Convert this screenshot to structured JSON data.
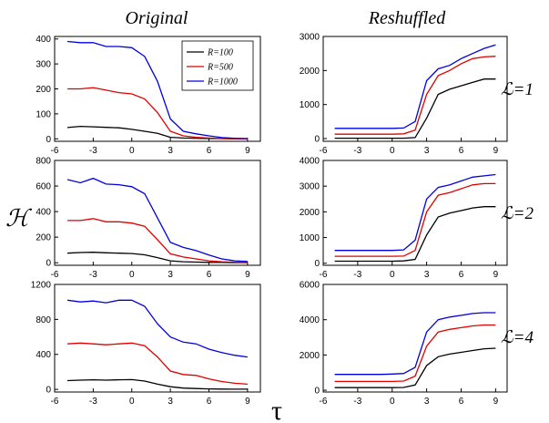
{
  "figure": {
    "col_titles": [
      "Original",
      "Reshuffled"
    ],
    "row_labels": [
      "ℒ=1",
      "ℒ=2",
      "ℒ=4"
    ],
    "ylabel": "ℋ",
    "xlabel": "τ",
    "legend": [
      "R=100",
      "R=500",
      "R=1000"
    ],
    "colors": {
      "R=100": "#000000",
      "R=500": "#e00000",
      "R=1000": "#0000e0"
    }
  },
  "chart_data": [
    {
      "type": "line",
      "panel": "Original, ℒ=1",
      "xlim": [
        -6,
        10
      ],
      "ylim": [
        -10,
        410
      ],
      "xticks": [
        -6,
        -3,
        0,
        3,
        6,
        9
      ],
      "yticks": [
        0,
        100,
        200,
        300,
        400
      ],
      "legend_position": "top-right",
      "x": [
        -5,
        -4,
        -3,
        -2,
        -1,
        0,
        1,
        2,
        3,
        4,
        5,
        6,
        7,
        8,
        9
      ],
      "series": [
        {
          "name": "R=100",
          "values": [
            45,
            50,
            48,
            46,
            44,
            38,
            30,
            22,
            6,
            3,
            2,
            1,
            1,
            0,
            0
          ]
        },
        {
          "name": "R=500",
          "values": [
            200,
            200,
            205,
            195,
            185,
            180,
            160,
            105,
            30,
            12,
            6,
            3,
            1,
            0,
            0
          ]
        },
        {
          "name": "R=1000",
          "values": [
            390,
            385,
            385,
            370,
            370,
            365,
            330,
            230,
            80,
            30,
            20,
            12,
            5,
            2,
            1
          ]
        }
      ]
    },
    {
      "type": "line",
      "panel": "Reshuffled, ℒ=1",
      "xlim": [
        -6,
        10
      ],
      "ylim": [
        -80,
        3000
      ],
      "xticks": [
        -6,
        -3,
        0,
        3,
        6,
        9
      ],
      "yticks": [
        0,
        1000,
        2000,
        3000
      ],
      "x": [
        -5,
        -4,
        -3,
        -2,
        -1,
        0,
        1,
        2,
        3,
        4,
        5,
        6,
        7,
        8,
        9
      ],
      "series": [
        {
          "name": "R=100",
          "values": [
            10,
            10,
            10,
            10,
            10,
            10,
            10,
            30,
            600,
            1300,
            1450,
            1550,
            1650,
            1750,
            1750
          ]
        },
        {
          "name": "R=500",
          "values": [
            130,
            130,
            130,
            130,
            130,
            130,
            140,
            250,
            1300,
            1850,
            2000,
            2200,
            2350,
            2400,
            2420
          ]
        },
        {
          "name": "R=1000",
          "values": [
            300,
            300,
            300,
            300,
            300,
            300,
            310,
            500,
            1700,
            2050,
            2150,
            2350,
            2500,
            2650,
            2750
          ]
        }
      ]
    },
    {
      "type": "line",
      "panel": "Original, ℒ=2",
      "xlim": [
        -6,
        10
      ],
      "ylim": [
        -20,
        800
      ],
      "xticks": [
        -6,
        -3,
        0,
        3,
        6,
        9
      ],
      "yticks": [
        0,
        200,
        400,
        600,
        800
      ],
      "x": [
        -5,
        -4,
        -3,
        -2,
        -1,
        0,
        1,
        2,
        3,
        4,
        5,
        6,
        7,
        8,
        9
      ],
      "series": [
        {
          "name": "R=100",
          "values": [
            75,
            80,
            82,
            78,
            75,
            72,
            62,
            40,
            15,
            8,
            5,
            3,
            2,
            1,
            1
          ]
        },
        {
          "name": "R=500",
          "values": [
            330,
            330,
            345,
            320,
            320,
            310,
            285,
            180,
            70,
            45,
            30,
            15,
            8,
            4,
            2
          ]
        },
        {
          "name": "R=1000",
          "values": [
            650,
            625,
            660,
            615,
            610,
            595,
            540,
            350,
            160,
            120,
            95,
            60,
            30,
            15,
            10
          ]
        }
      ]
    },
    {
      "type": "line",
      "panel": "Reshuffled, ℒ=2",
      "xlim": [
        -6,
        10
      ],
      "ylim": [
        -80,
        4000
      ],
      "xticks": [
        -6,
        -3,
        0,
        3,
        6,
        9
      ],
      "yticks": [
        0,
        1000,
        2000,
        3000,
        4000
      ],
      "x": [
        -5,
        -4,
        -3,
        -2,
        -1,
        0,
        1,
        2,
        3,
        4,
        5,
        6,
        7,
        8,
        9
      ],
      "series": [
        {
          "name": "R=100",
          "values": [
            80,
            80,
            80,
            80,
            80,
            80,
            90,
            150,
            1100,
            1800,
            1950,
            2050,
            2150,
            2200,
            2200
          ]
        },
        {
          "name": "R=500",
          "values": [
            270,
            270,
            270,
            270,
            270,
            270,
            280,
            500,
            2000,
            2650,
            2750,
            2900,
            3050,
            3100,
            3100
          ]
        },
        {
          "name": "R=1000",
          "values": [
            500,
            500,
            500,
            500,
            500,
            500,
            520,
            900,
            2500,
            2950,
            3050,
            3200,
            3350,
            3400,
            3450
          ]
        }
      ]
    },
    {
      "type": "line",
      "panel": "Original, ℒ=4",
      "xlim": [
        -6,
        10
      ],
      "ylim": [
        -30,
        1200
      ],
      "xticks": [
        -6,
        -3,
        0,
        3,
        6,
        9
      ],
      "yticks": [
        0,
        400,
        800,
        1200
      ],
      "x": [
        -5,
        -4,
        -3,
        -2,
        -1,
        0,
        1,
        2,
        3,
        4,
        5,
        6,
        7,
        8,
        9
      ],
      "series": [
        {
          "name": "R=100",
          "values": [
            100,
            105,
            110,
            105,
            110,
            112,
            95,
            60,
            30,
            15,
            10,
            5,
            3,
            2,
            2
          ]
        },
        {
          "name": "R=500",
          "values": [
            520,
            530,
            520,
            510,
            520,
            530,
            500,
            370,
            210,
            170,
            160,
            120,
            90,
            70,
            60
          ]
        },
        {
          "name": "R=1000",
          "values": [
            1020,
            1000,
            1010,
            990,
            1020,
            1020,
            950,
            750,
            600,
            540,
            520,
            460,
            420,
            390,
            370
          ]
        }
      ]
    },
    {
      "type": "line",
      "panel": "Reshuffled, ℒ=4",
      "xlim": [
        -6,
        10
      ],
      "ylim": [
        -100,
        6000
      ],
      "xticks": [
        -6,
        -3,
        0,
        3,
        6,
        9
      ],
      "yticks": [
        0,
        2000,
        4000,
        6000
      ],
      "x": [
        -5,
        -4,
        -3,
        -2,
        -1,
        0,
        1,
        2,
        3,
        4,
        5,
        6,
        7,
        8,
        9
      ],
      "series": [
        {
          "name": "R=100",
          "values": [
            150,
            150,
            150,
            150,
            150,
            150,
            160,
            300,
            1400,
            1900,
            2050,
            2150,
            2250,
            2350,
            2380
          ]
        },
        {
          "name": "R=500",
          "values": [
            500,
            500,
            500,
            500,
            500,
            500,
            520,
            800,
            2500,
            3300,
            3450,
            3550,
            3650,
            3700,
            3700
          ]
        },
        {
          "name": "R=1000",
          "values": [
            900,
            900,
            900,
            900,
            900,
            920,
            950,
            1300,
            3300,
            4000,
            4150,
            4250,
            4350,
            4400,
            4400
          ]
        }
      ]
    }
  ]
}
